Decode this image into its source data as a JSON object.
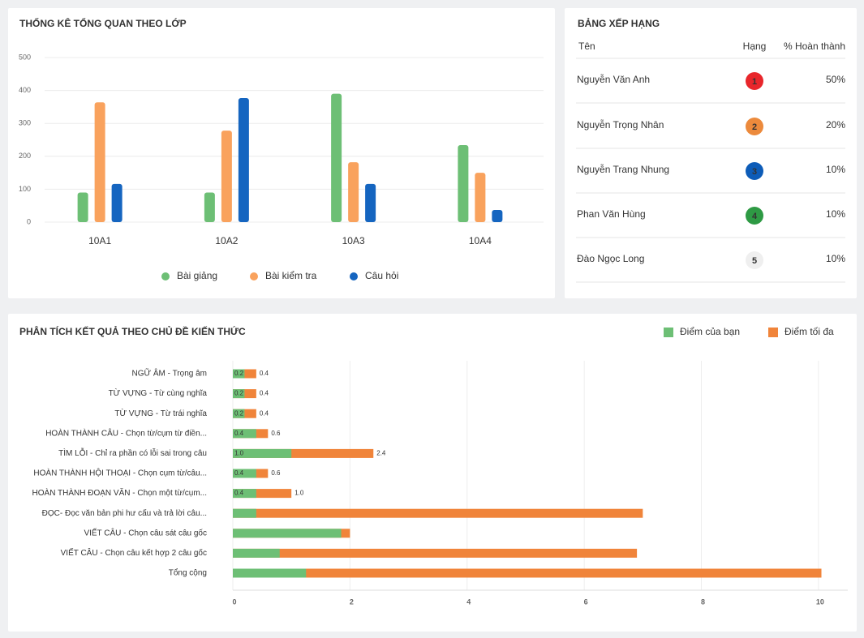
{
  "chart_data": [
    {
      "type": "bar",
      "title": "THỐNG KÊ TỔNG QUAN THEO LỚP",
      "categories": [
        "10A1",
        "10A2",
        "10A3",
        "10A4"
      ],
      "series": [
        {
          "name": "Bài giảng",
          "color": "#6dbf75",
          "values": [
            90,
            90,
            390,
            234
          ]
        },
        {
          "name": "Bài kiểm tra",
          "color": "#f9a25d",
          "values": [
            364,
            278,
            182,
            150
          ]
        },
        {
          "name": "Câu hỏi",
          "color": "#1565c0",
          "values": [
            116,
            377,
            116,
            37
          ]
        }
      ],
      "ylim": [
        0,
        500
      ],
      "yticks": [
        0,
        100,
        200,
        300,
        400,
        500
      ],
      "grid": true,
      "legend": "bottom"
    },
    {
      "type": "hbar",
      "title": "PHÂN TÍCH KẾT QUẢ THEO CHỦ ĐỀ KIẾN THỨC",
      "categories": [
        "NGỮ ÂM - Trọng âm",
        "TỪ VỰNG - Từ cùng nghĩa",
        "TỪ VỰNG - Từ trái nghĩa",
        "HOÀN THÀNH CÂU - Chọn từ/cụm từ điền...",
        "TÌM LỖI - Chỉ ra phần có lỗi sai trong câu",
        "HOÀN THÀNH HỘI THOẠI - Chọn cụm từ/câu...",
        "HOÀN THÀNH ĐOẠN VĂN - Chọn một từ/cụm...",
        "ĐỌC- Đọc văn bản phi hư cấu và trả lời câu...",
        "VIẾT CÂU - Chọn câu sát câu gốc",
        "VIẾT CÂU - Chọn câu kết hợp 2 câu gốc",
        "Tổng cộng"
      ],
      "series": [
        {
          "name": "Điểm tối đa",
          "color": "#f0843a",
          "values": [
            0.4,
            0.4,
            0.4,
            0.6,
            2.4,
            0.6,
            1.0,
            7.0,
            2.0,
            6.9,
            10.05
          ],
          "value_labels": [
            "0.4",
            "0.4",
            "0.4",
            "0.6",
            "2.4",
            "0.6",
            "1.0",
            null,
            null,
            null,
            null
          ]
        },
        {
          "name": "Điểm của bạn",
          "color": "#6dbf75",
          "values": [
            0.2,
            0.2,
            0.2,
            0.4,
            1.0,
            0.4,
            0.4,
            0.4,
            1.85,
            0.8,
            1.25
          ],
          "value_labels": [
            "0.2",
            "0.2",
            "0.2",
            "0.4",
            "1.0",
            "0.4",
            "0.4",
            null,
            null,
            null,
            null
          ]
        }
      ],
      "xlim": [
        0,
        10.5
      ],
      "xticks": [
        0,
        2,
        4,
        6,
        8,
        10
      ],
      "grid": true,
      "legend": "top-right"
    }
  ],
  "leaderboard": {
    "title": "BẢNG XẾP HẠNG",
    "columns": [
      "Tên",
      "Hạng",
      "% Hoàn thành"
    ],
    "rows": [
      {
        "name": "Nguyễn Văn Anh",
        "rank": 1,
        "percent": "50%",
        "badge_color": "#e8262b"
      },
      {
        "name": "Nguyễn Trọng Nhân",
        "rank": 2,
        "percent": "20%",
        "badge_color": "#ec8a3c"
      },
      {
        "name": "Nguyễn Trang Nhung",
        "rank": 3,
        "percent": "10%",
        "badge_color": "#0d5cb8"
      },
      {
        "name": "Phan Văn Hùng",
        "rank": 4,
        "percent": "10%",
        "badge_color": "#2e9a44"
      },
      {
        "name": "Đào Ngọc Long",
        "rank": 5,
        "percent": "10%",
        "badge_color": "#efefef"
      }
    ]
  }
}
